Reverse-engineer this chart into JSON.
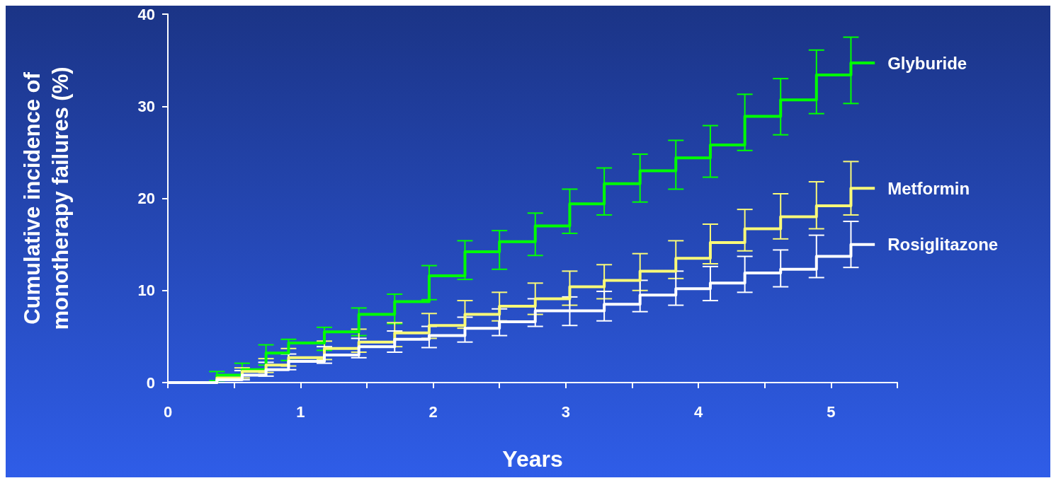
{
  "chart_data": {
    "type": "step",
    "xlabel": "Years",
    "ylabel": "Cumulative incidence of monotherapy failures (%)",
    "x": [
      0,
      0.37,
      0.56,
      0.74,
      0.91,
      1.18,
      1.44,
      1.71,
      1.97,
      2.24,
      2.5,
      2.77,
      3.03,
      3.29,
      3.56,
      3.83,
      4.09,
      4.35,
      4.62,
      4.89,
      5.15,
      5.33
    ],
    "series": [
      {
        "name": "Glyburide",
        "color": "#00ff00",
        "values": [
          0,
          0.8,
          1.4,
          3.2,
          4.3,
          5.5,
          7.4,
          8.8,
          11.6,
          14.2,
          15.3,
          17.0,
          19.4,
          21.6,
          23.0,
          24.4,
          25.8,
          28.9,
          30.7,
          33.4,
          34.7,
          34.7
        ],
        "errors": [
          null,
          [
            0.2,
            1.2
          ],
          [
            0.8,
            2.1
          ],
          [
            1.9,
            4.1
          ],
          [
            2.4,
            4.7
          ],
          [
            3.5,
            6.0
          ],
          [
            5.1,
            8.1
          ],
          [
            6.4,
            9.6
          ],
          [
            9.0,
            12.7
          ],
          [
            11.2,
            15.4
          ],
          [
            12.3,
            16.5
          ],
          [
            13.8,
            18.4
          ],
          [
            16.2,
            21.0
          ],
          [
            18.2,
            23.3
          ],
          [
            19.6,
            24.8
          ],
          [
            21.0,
            26.3
          ],
          [
            22.3,
            27.9
          ],
          [
            25.2,
            31.3
          ],
          [
            26.9,
            33.0
          ],
          [
            29.2,
            36.1
          ],
          [
            30.3,
            37.5
          ],
          null
        ]
      },
      {
        "name": "Metformin",
        "color": "#fafa78",
        "values": [
          0,
          0.5,
          1.2,
          1.9,
          2.7,
          3.7,
          4.4,
          5.4,
          6.2,
          7.4,
          8.3,
          9.1,
          10.4,
          11.1,
          12.1,
          13.5,
          15.2,
          16.7,
          18.0,
          19.2,
          21.1,
          21.1
        ],
        "errors": [
          null,
          null,
          [
            0.5,
            1.6
          ],
          [
            1.1,
            2.6
          ],
          [
            1.8,
            3.7
          ],
          [
            2.5,
            4.5
          ],
          [
            3.3,
            5.8
          ],
          [
            3.9,
            6.5
          ],
          [
            4.8,
            7.5
          ],
          [
            5.9,
            8.9
          ],
          [
            6.7,
            9.8
          ],
          [
            7.4,
            10.8
          ],
          [
            8.4,
            12.1
          ],
          [
            9.1,
            12.8
          ],
          [
            10.0,
            14.0
          ],
          [
            11.3,
            15.4
          ],
          [
            12.9,
            17.2
          ],
          [
            14.3,
            18.8
          ],
          [
            15.6,
            20.5
          ],
          [
            16.7,
            21.8
          ],
          [
            18.2,
            24.0
          ],
          null
        ]
      },
      {
        "name": "Rosiglitazone",
        "color": "#ffffff",
        "values": [
          0,
          0.3,
          0.8,
          1.4,
          2.3,
          3.0,
          3.9,
          4.7,
          5.1,
          5.9,
          6.6,
          7.8,
          7.8,
          8.5,
          9.5,
          10.2,
          10.8,
          11.9,
          12.3,
          13.7,
          15.0,
          15.0
        ],
        "errors": [
          null,
          null,
          [
            0.3,
            1.3
          ],
          [
            0.7,
            2.2
          ],
          [
            1.4,
            3.1
          ],
          [
            2.1,
            3.9
          ],
          [
            2.7,
            4.8
          ],
          [
            3.3,
            5.6
          ],
          [
            3.8,
            6.1
          ],
          [
            4.4,
            7.1
          ],
          [
            5.1,
            8.0
          ],
          [
            6.1,
            9.1
          ],
          [
            6.2,
            9.3
          ],
          [
            6.7,
            9.9
          ],
          [
            7.7,
            11.1
          ],
          [
            8.4,
            12.1
          ],
          [
            8.9,
            12.6
          ],
          [
            9.8,
            13.7
          ],
          [
            10.4,
            14.4
          ],
          [
            11.4,
            16.0
          ],
          [
            12.5,
            17.5
          ],
          null
        ]
      }
    ],
    "xlim": [
      0,
      5.5
    ],
    "xticks": [
      0,
      {
        "value": 0.5,
        "label": null
      },
      1,
      {
        "value": 1.5,
        "label": null
      },
      2,
      {
        "value": 2.5,
        "label": null
      },
      3,
      {
        "value": 3.5,
        "label": null
      },
      4,
      {
        "value": 4.5,
        "label": null
      },
      5,
      {
        "value": 5.5,
        "label": null
      }
    ],
    "ylim": [
      0,
      40
    ],
    "yticks": [
      0,
      10,
      20,
      30,
      40
    ],
    "grid": false,
    "legend": false,
    "marker": "none",
    "line_style": "solid"
  }
}
